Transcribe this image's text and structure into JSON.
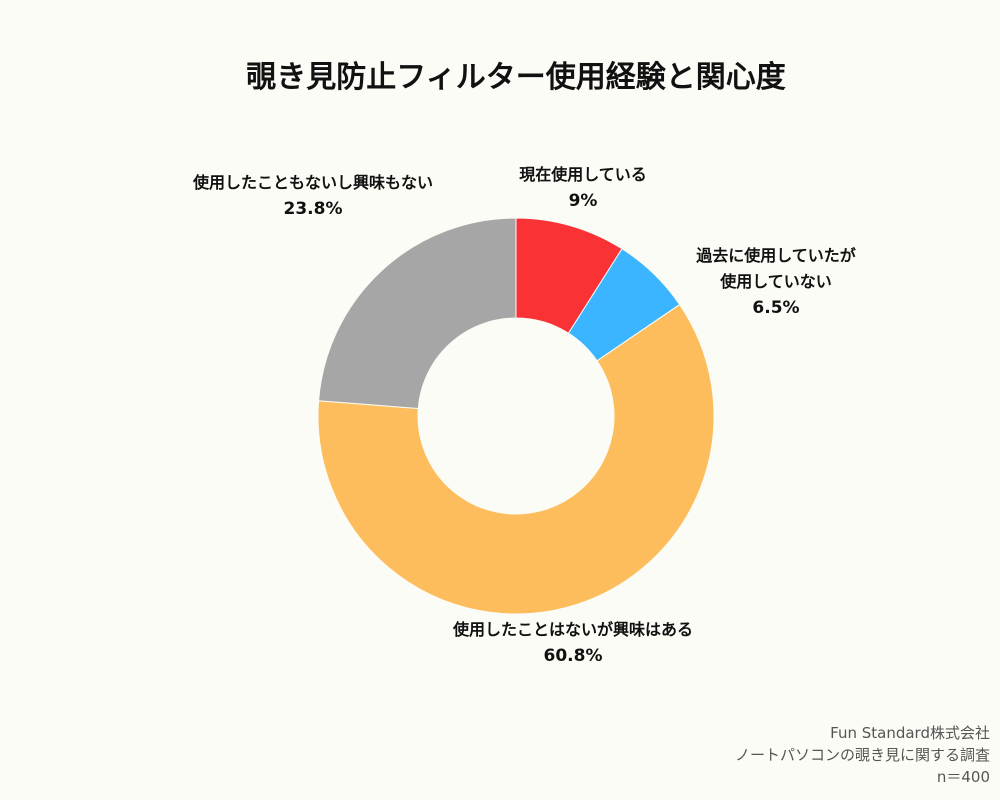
{
  "chart_data": {
    "type": "pie",
    "donut": true,
    "title": "覗き見防止フィルター使用経験と関心度",
    "categories": [
      "現在使用している",
      "過去に使用していたが\n使用していない",
      "使用したことはないが興味はある",
      "使用したこともないし興味もない"
    ],
    "values": [
      9,
      6.5,
      60.8,
      23.8
    ],
    "value_labels": [
      "9%",
      "6.5%",
      "60.8%",
      "23.8%"
    ],
    "colors": [
      "#f93236",
      "#3bb5ff",
      "#fdbd5c",
      "#a6a6a6"
    ],
    "notes": [
      "Fun Standard株式会社",
      "ノートパソコンの覗き見に関する調査",
      "n＝400"
    ]
  }
}
